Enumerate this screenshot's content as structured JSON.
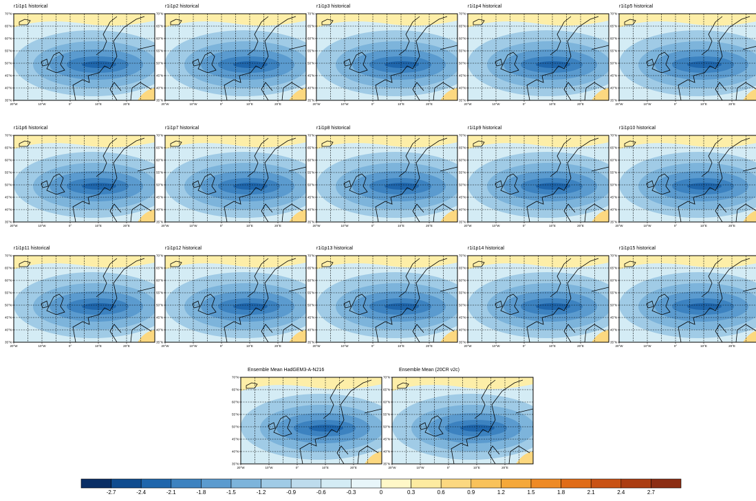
{
  "panels": [
    {
      "title": "r1i1p1 historical"
    },
    {
      "title": "r1i1p2 historical"
    },
    {
      "title": "r1i1p3 historical"
    },
    {
      "title": "r1i1p4 historical"
    },
    {
      "title": "r1i1p5 historical"
    },
    {
      "title": "r1i1p6 historical"
    },
    {
      "title": "r1i1p7 historical"
    },
    {
      "title": "r1i1p8 historical"
    },
    {
      "title": "r1i1p9 historical"
    },
    {
      "title": "r1i1p10 historical"
    },
    {
      "title": "r1i1p11 historical"
    },
    {
      "title": "r1i1p12 historical"
    },
    {
      "title": "r1i1p13 historical"
    },
    {
      "title": "r1i1p14 historical"
    },
    {
      "title": "r1i1p15 historical"
    },
    {
      "title": "Ensemble Mean HadGEM3-A-N216"
    },
    {
      "title": "Ensemble Mean (20CR v2c)"
    }
  ],
  "lat_range": [
    35,
    70
  ],
  "lon_range": [
    -20,
    30
  ],
  "lat_ticks": [
    {
      "value": 70,
      "label": "70°N"
    },
    {
      "value": 65,
      "label": "65°N"
    },
    {
      "value": 60,
      "label": "60°N"
    },
    {
      "value": 55,
      "label": "55°N"
    },
    {
      "value": 50,
      "label": "50°N"
    },
    {
      "value": 45,
      "label": "45°N"
    },
    {
      "value": 40,
      "label": "40°N"
    },
    {
      "value": 35,
      "label": "35°N"
    }
  ],
  "lon_ticks": [
    {
      "value": -20,
      "label": "20°W"
    },
    {
      "value": -10,
      "label": "10°W"
    },
    {
      "value": 0,
      "label": "0°"
    },
    {
      "value": 10,
      "label": "10°E"
    },
    {
      "value": 20,
      "label": "20°E"
    }
  ],
  "colorbar": {
    "levels": [
      -2.7,
      -2.4,
      -2.1,
      -1.8,
      -1.5,
      -1.2,
      -0.9,
      -0.6,
      -0.3,
      0,
      0.3,
      0.6,
      0.9,
      1.2,
      1.5,
      1.8,
      2.1,
      2.4,
      2.7
    ],
    "colors": [
      "#0a2f66",
      "#0f4c8f",
      "#1f66ac",
      "#3c82c0",
      "#5b9bcf",
      "#7db4db",
      "#a0cbe6",
      "#bedced",
      "#d4ecf5",
      "#e8f6fa",
      "#fff8c8",
      "#fdeba0",
      "#fcd880",
      "#f9c25a",
      "#f5a83a",
      "#ee8a25",
      "#e06c18",
      "#c95214",
      "#ab3d12",
      "#8c2e14"
    ]
  }
}
